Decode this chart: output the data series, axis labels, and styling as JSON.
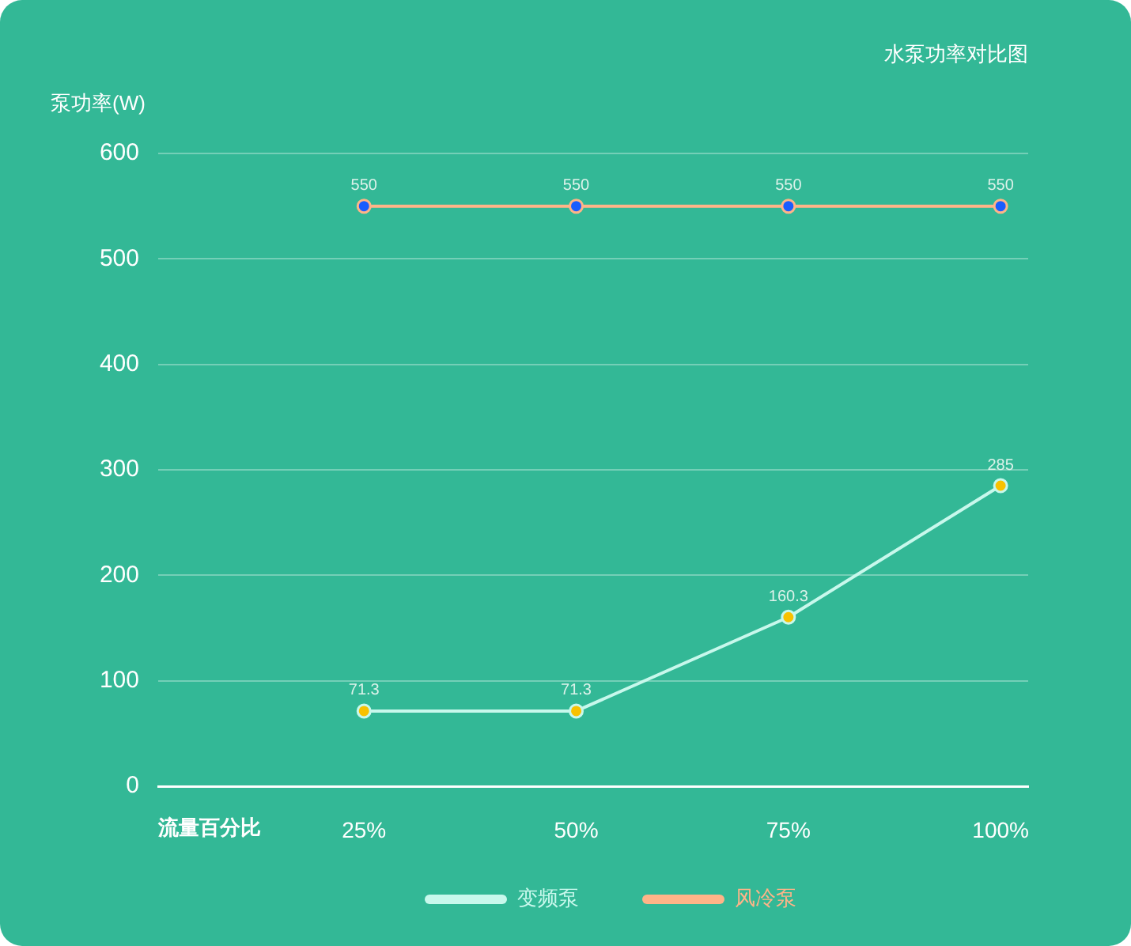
{
  "chart_data": {
    "type": "line",
    "title": "水泵功率对比图",
    "xlabel": "流量百分比",
    "ylabel": "泵功率(W)",
    "categories": [
      "25%",
      "50%",
      "75%",
      "100%"
    ],
    "series": [
      {
        "name": "变频泵",
        "color": "#c8f8ec",
        "colors": [
          "#f8c100",
          "#f8c100",
          "#f8c100",
          "#f8c100"
        ],
        "values": [
          71.3,
          71.3,
          160.3,
          285
        ]
      },
      {
        "name": "风冷泵",
        "color": "#ffb488",
        "colors": [
          "#1a5dff",
          "#1a5dff",
          "#1a5dff",
          "#1a5dff"
        ],
        "values": [
          550,
          550,
          550,
          550
        ]
      }
    ],
    "ylim": [
      0,
      600
    ],
    "yticks": [
      0,
      100,
      200,
      300,
      400,
      500,
      600
    ],
    "grid": "y",
    "legend": "bottom",
    "marker": "circle",
    "line_style": "solid",
    "data_labels": true
  }
}
